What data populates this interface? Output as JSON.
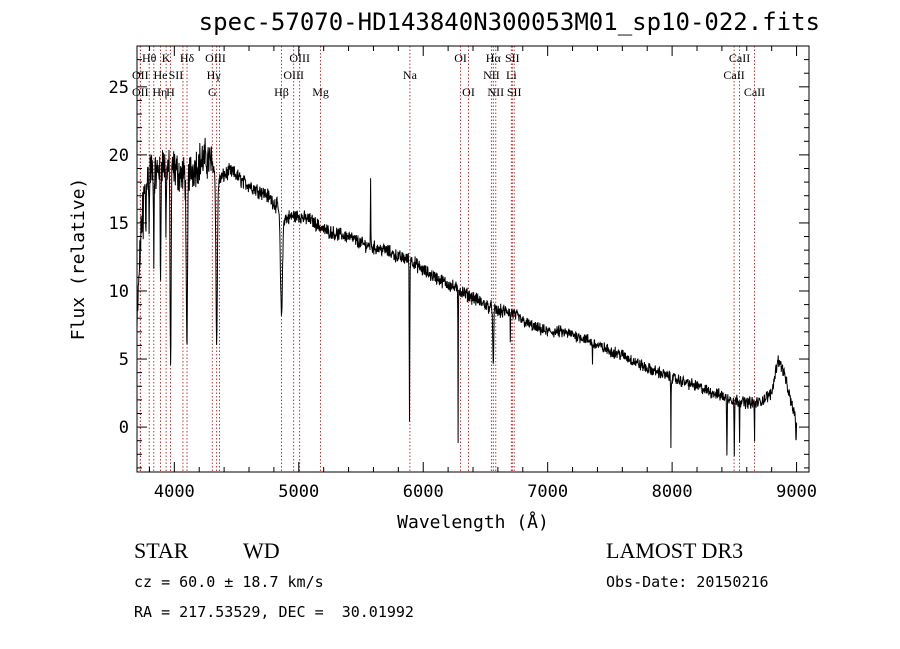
{
  "title": "spec-57070-HD143840N300053M01_sp10-022.fits",
  "info": {
    "class_label": "STAR",
    "subclass": "WD",
    "survey": "LAMOST DR3",
    "cz": "cz = 60.0 ± 18.7 km/s",
    "obs_date": "Obs-Date: 20150216",
    "radec": "RA = 217.53529, DEC =  30.01992"
  },
  "chart_data": {
    "type": "line",
    "title": "spec-57070-HD143840N300053M01_sp10-022.fits",
    "xlabel": "Wavelength (Å)",
    "ylabel": "Flux (relative)",
    "xlim": [
      3700,
      9100
    ],
    "ylim": [
      -3.3,
      28
    ],
    "xticks": [
      4000,
      5000,
      6000,
      7000,
      8000,
      9000
    ],
    "yticks": [
      0,
      5,
      10,
      15,
      20,
      25
    ],
    "series": [
      {
        "name": "flux",
        "anchors": [
          [
            3700,
            7
          ],
          [
            3720,
            12
          ],
          [
            3750,
            17
          ],
          [
            3800,
            19
          ],
          [
            3850,
            18.5
          ],
          [
            3900,
            19.5
          ],
          [
            3950,
            19
          ],
          [
            4000,
            19
          ],
          [
            4050,
            18.5
          ],
          [
            4100,
            18.5
          ],
          [
            4150,
            19
          ],
          [
            4200,
            19.5
          ],
          [
            4250,
            19.7
          ],
          [
            4300,
            19.5
          ],
          [
            4350,
            18
          ],
          [
            4400,
            18.5
          ],
          [
            4450,
            18.8
          ],
          [
            4500,
            18.5
          ],
          [
            4550,
            18
          ],
          [
            4600,
            17.8
          ],
          [
            4650,
            17.5
          ],
          [
            4700,
            17.3
          ],
          [
            4750,
            17
          ],
          [
            4800,
            16.5
          ],
          [
            4850,
            16
          ],
          [
            4900,
            15.3
          ],
          [
            4950,
            15.5
          ],
          [
            5000,
            15.5
          ],
          [
            5100,
            15.2
          ],
          [
            5200,
            14.5
          ],
          [
            5300,
            14.2
          ],
          [
            5400,
            14
          ],
          [
            5500,
            13.5
          ],
          [
            5600,
            13.2
          ],
          [
            5700,
            13
          ],
          [
            5800,
            12.5
          ],
          [
            5900,
            12.3
          ],
          [
            6000,
            11.5
          ],
          [
            6100,
            11
          ],
          [
            6200,
            10.5
          ],
          [
            6300,
            10
          ],
          [
            6400,
            9.5
          ],
          [
            6500,
            9
          ],
          [
            6600,
            8.5
          ],
          [
            6700,
            8.5
          ],
          [
            6800,
            7.8
          ],
          [
            6900,
            7.3
          ],
          [
            7000,
            7
          ],
          [
            7100,
            7
          ],
          [
            7200,
            6.8
          ],
          [
            7300,
            6.5
          ],
          [
            7400,
            6
          ],
          [
            7500,
            5.6
          ],
          [
            7600,
            5.3
          ],
          [
            7700,
            4.8
          ],
          [
            7800,
            4.3
          ],
          [
            7900,
            4
          ],
          [
            8000,
            3.6
          ],
          [
            8100,
            3.3
          ],
          [
            8200,
            3
          ],
          [
            8300,
            2.6
          ],
          [
            8400,
            2.3
          ],
          [
            8500,
            2
          ],
          [
            8600,
            1.8
          ],
          [
            8700,
            1.8
          ],
          [
            8800,
            2.5
          ],
          [
            8850,
            5
          ],
          [
            8900,
            4
          ],
          [
            8950,
            2
          ],
          [
            9000,
            0.5
          ]
        ],
        "absorption": [
          [
            3750,
            3.5,
            2
          ],
          [
            3771,
            4,
            2.5
          ],
          [
            3798,
            5,
            3
          ],
          [
            3835,
            7,
            3
          ],
          [
            3889,
            9,
            4
          ],
          [
            3933,
            6,
            3
          ],
          [
            3970,
            15,
            6
          ],
          [
            4101,
            14,
            7
          ],
          [
            4340,
            12,
            8
          ],
          [
            4861,
            7.5,
            12
          ],
          [
            5890,
            12,
            3
          ],
          [
            6280,
            11,
            2
          ],
          [
            6563,
            4.5,
            5
          ],
          [
            6700,
            2.5,
            2
          ],
          [
            7360,
            1.5,
            2
          ],
          [
            7990,
            5,
            2
          ],
          [
            8440,
            4.5,
            3
          ],
          [
            8500,
            4.0,
            3
          ],
          [
            8542,
            3,
            2
          ],
          [
            8662,
            3,
            2
          ],
          [
            8996,
            2,
            3
          ]
        ],
        "emission": [
          [
            5577,
            5.5,
            2
          ]
        ]
      }
    ],
    "lines": [
      {
        "label": "Hθ",
        "x": 3798,
        "row": 0,
        "dx": 0
      },
      {
        "label": "Hη",
        "x": 3835,
        "row": 2,
        "dx": 6
      },
      {
        "label": "He",
        "x": 3889,
        "row": 1,
        "dx": 0
      },
      {
        "label": "K",
        "x": 3934,
        "row": 0,
        "dx": 0
      },
      {
        "label": "H",
        "x": 3969,
        "row": 2,
        "dx": 0
      },
      {
        "label": "SII",
        "x": 4069,
        "row": 1,
        "dx": -7
      },
      {
        "label": "Hδ",
        "x": 4102,
        "row": 0,
        "dx": 0
      },
      {
        "label": "OIII",
        "x": 4363,
        "row": 0,
        "dx": -4
      },
      {
        "label": "Hγ",
        "x": 4340,
        "row": 1,
        "dx": -3
      },
      {
        "label": "G",
        "x": 4305,
        "row": 2,
        "dx": 0
      },
      {
        "label": "Hβ",
        "x": 4861,
        "row": 2,
        "dx": 0
      },
      {
        "label": "OIII",
        "x": 4959,
        "row": 1,
        "dx": 0
      },
      {
        "label": "OIII",
        "x": 5007,
        "row": 0,
        "dx": 0
      },
      {
        "label": "Mg",
        "x": 5175,
        "row": 2,
        "dx": 0
      },
      {
        "label": "Na",
        "x": 5893,
        "row": 1,
        "dx": 0
      },
      {
        "label": "OI",
        "x": 6300,
        "row": 0,
        "dx": 0
      },
      {
        "label": "OI",
        "x": 6364,
        "row": 2,
        "dx": 0
      },
      {
        "label": "NII",
        "x": 6548,
        "row": 1,
        "dx": 0
      },
      {
        "label": "Hα",
        "x": 6563,
        "row": 0,
        "dx": 0
      },
      {
        "label": "NII",
        "x": 6583,
        "row": 2,
        "dx": 0
      },
      {
        "label": "Li",
        "x": 6708,
        "row": 1,
        "dx": 0
      },
      {
        "label": "SII",
        "x": 6716,
        "row": 0,
        "dx": 0
      },
      {
        "label": "SII",
        "x": 6731,
        "row": 2,
        "dx": 0
      },
      {
        "label": "CaII",
        "x": 8498,
        "row": 1,
        "dx": 0
      },
      {
        "label": "CaII",
        "x": 8542,
        "row": 0,
        "dx": 0
      },
      {
        "label": "CaII",
        "x": 8662,
        "row": 2,
        "dx": 0
      },
      {
        "label": "OII",
        "x": 3727,
        "row": 1,
        "dx": 0
      },
      {
        "label": "OII",
        "x": 3727,
        "row": 2,
        "dx": 0
      }
    ]
  }
}
